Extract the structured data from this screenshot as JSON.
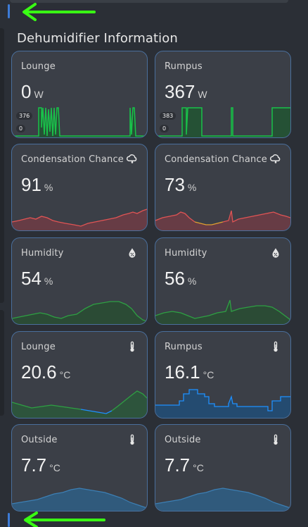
{
  "section": {
    "title": "Dehumidifier Information"
  },
  "cards": {
    "power_lounge": {
      "label": "Lounge",
      "value": "0",
      "unit": "W",
      "max": "376",
      "min": "0"
    },
    "power_rumpus": {
      "label": "Rumpus",
      "value": "367",
      "unit": "W",
      "max": "383",
      "min": "0"
    },
    "cond_lounge": {
      "label": "Condensation Chance",
      "value": "91",
      "unit": "%",
      "icon": "weather-rainy-cloud-icon"
    },
    "cond_rumpus": {
      "label": "Condensation Chance",
      "value": "73",
      "unit": "%",
      "icon": "weather-rainy-cloud-icon"
    },
    "hum_lounge": {
      "label": "Humidity",
      "value": "54",
      "unit": "%",
      "icon": "water-percent-icon"
    },
    "hum_rumpus": {
      "label": "Humidity",
      "value": "56",
      "unit": "%",
      "icon": "water-percent-icon"
    },
    "temp_lounge": {
      "label": "Lounge",
      "value": "20.6",
      "unit": "°C",
      "icon": "thermometer-icon"
    },
    "temp_rumpus": {
      "label": "Rumpus",
      "value": "16.1",
      "unit": "°C",
      "icon": "thermometer-icon"
    },
    "temp_outside_1": {
      "label": "Outside",
      "value": "7.7",
      "unit": "°C",
      "icon": "thermometer-icon"
    },
    "temp_outside_2": {
      "label": "Outside",
      "value": "7.7",
      "unit": "°C",
      "icon": "thermometer-icon"
    }
  },
  "colors": {
    "arrow": "#39ff14",
    "card_border": "#4a6f9c",
    "power_line": "#19c24a",
    "condensation_line": "#e05454",
    "condensation_mid": "#e0a030",
    "humidity_line": "#2ea043",
    "temp_blue": "#1e90ff",
    "outside_fill": "#2f5f86"
  }
}
